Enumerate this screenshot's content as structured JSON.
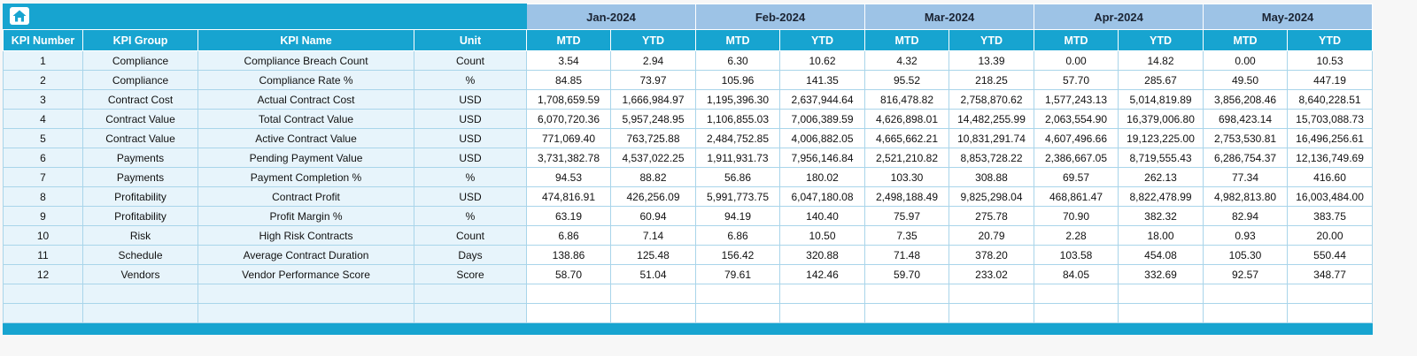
{
  "table": {
    "months": [
      "Jan-2024",
      "Feb-2024",
      "Mar-2024",
      "Apr-2024",
      "May-2024"
    ],
    "left_headers": [
      "KPI Number",
      "KPI Group",
      "KPI Name",
      "Unit"
    ],
    "sub_headers": [
      "MTD",
      "YTD"
    ],
    "rows": [
      {
        "num": "1",
        "group": "Compliance",
        "name": "Compliance Breach Count",
        "unit": "Count",
        "values": [
          "3.54",
          "2.94",
          "6.30",
          "10.62",
          "4.32",
          "13.39",
          "0.00",
          "14.82",
          "0.00",
          "10.53"
        ]
      },
      {
        "num": "2",
        "group": "Compliance",
        "name": "Compliance Rate %",
        "unit": "%",
        "values": [
          "84.85",
          "73.97",
          "105.96",
          "141.35",
          "95.52",
          "218.25",
          "57.70",
          "285.67",
          "49.50",
          "447.19"
        ]
      },
      {
        "num": "3",
        "group": "Contract Cost",
        "name": "Actual Contract Cost",
        "unit": "USD",
        "values": [
          "1,708,659.59",
          "1,666,984.97",
          "1,195,396.30",
          "2,637,944.64",
          "816,478.82",
          "2,758,870.62",
          "1,577,243.13",
          "5,014,819.89",
          "3,856,208.46",
          "8,640,228.51"
        ]
      },
      {
        "num": "4",
        "group": "Contract Value",
        "name": "Total Contract Value",
        "unit": "USD",
        "values": [
          "6,070,720.36",
          "5,957,248.95",
          "1,106,855.03",
          "7,006,389.59",
          "4,626,898.01",
          "14,482,255.99",
          "2,063,554.90",
          "16,379,006.80",
          "698,423.14",
          "15,703,088.73"
        ]
      },
      {
        "num": "5",
        "group": "Contract Value",
        "name": "Active Contract Value",
        "unit": "USD",
        "values": [
          "771,069.40",
          "763,725.88",
          "2,484,752.85",
          "4,006,882.05",
          "4,665,662.21",
          "10,831,291.74",
          "4,607,496.66",
          "19,123,225.00",
          "2,753,530.81",
          "16,496,256.61"
        ]
      },
      {
        "num": "6",
        "group": "Payments",
        "name": "Pending Payment Value",
        "unit": "USD",
        "values": [
          "3,731,382.78",
          "4,537,022.25",
          "1,911,931.73",
          "7,956,146.84",
          "2,521,210.82",
          "8,853,728.22",
          "2,386,667.05",
          "8,719,555.43",
          "6,286,754.37",
          "12,136,749.69"
        ]
      },
      {
        "num": "7",
        "group": "Payments",
        "name": "Payment Completion %",
        "unit": "%",
        "values": [
          "94.53",
          "88.82",
          "56.86",
          "180.02",
          "103.30",
          "308.88",
          "69.57",
          "262.13",
          "77.34",
          "416.60"
        ]
      },
      {
        "num": "8",
        "group": "Profitability",
        "name": "Contract Profit",
        "unit": "USD",
        "values": [
          "474,816.91",
          "426,256.09",
          "5,991,773.75",
          "6,047,180.08",
          "2,498,188.49",
          "9,825,298.04",
          "468,861.47",
          "8,822,478.99",
          "4,982,813.80",
          "16,003,484.00"
        ]
      },
      {
        "num": "9",
        "group": "Profitability",
        "name": "Profit Margin %",
        "unit": "%",
        "values": [
          "63.19",
          "60.94",
          "94.19",
          "140.40",
          "75.97",
          "275.78",
          "70.90",
          "382.32",
          "82.94",
          "383.75"
        ]
      },
      {
        "num": "10",
        "group": "Risk",
        "name": "High Risk Contracts",
        "unit": "Count",
        "values": [
          "6.86",
          "7.14",
          "6.86",
          "10.50",
          "7.35",
          "20.79",
          "2.28",
          "18.00",
          "0.93",
          "20.00"
        ]
      },
      {
        "num": "11",
        "group": "Schedule",
        "name": "Average Contract Duration",
        "unit": "Days",
        "values": [
          "138.86",
          "125.48",
          "156.42",
          "320.88",
          "71.48",
          "378.20",
          "103.58",
          "454.08",
          "105.30",
          "550.44"
        ]
      },
      {
        "num": "12",
        "group": "Vendors",
        "name": "Vendor Performance Score",
        "unit": "Score",
        "values": [
          "58.70",
          "51.04",
          "79.61",
          "142.46",
          "59.70",
          "233.02",
          "84.05",
          "332.69",
          "92.57",
          "348.77"
        ]
      }
    ],
    "empty_row_count": 2,
    "icons": {
      "corner": "home-icon"
    }
  },
  "colors": {
    "header_cyan": "#17a4d0",
    "month_blue": "#9dc3e6",
    "row_tint": "#e7f4fb",
    "grid_line": "#a9d5ea"
  }
}
